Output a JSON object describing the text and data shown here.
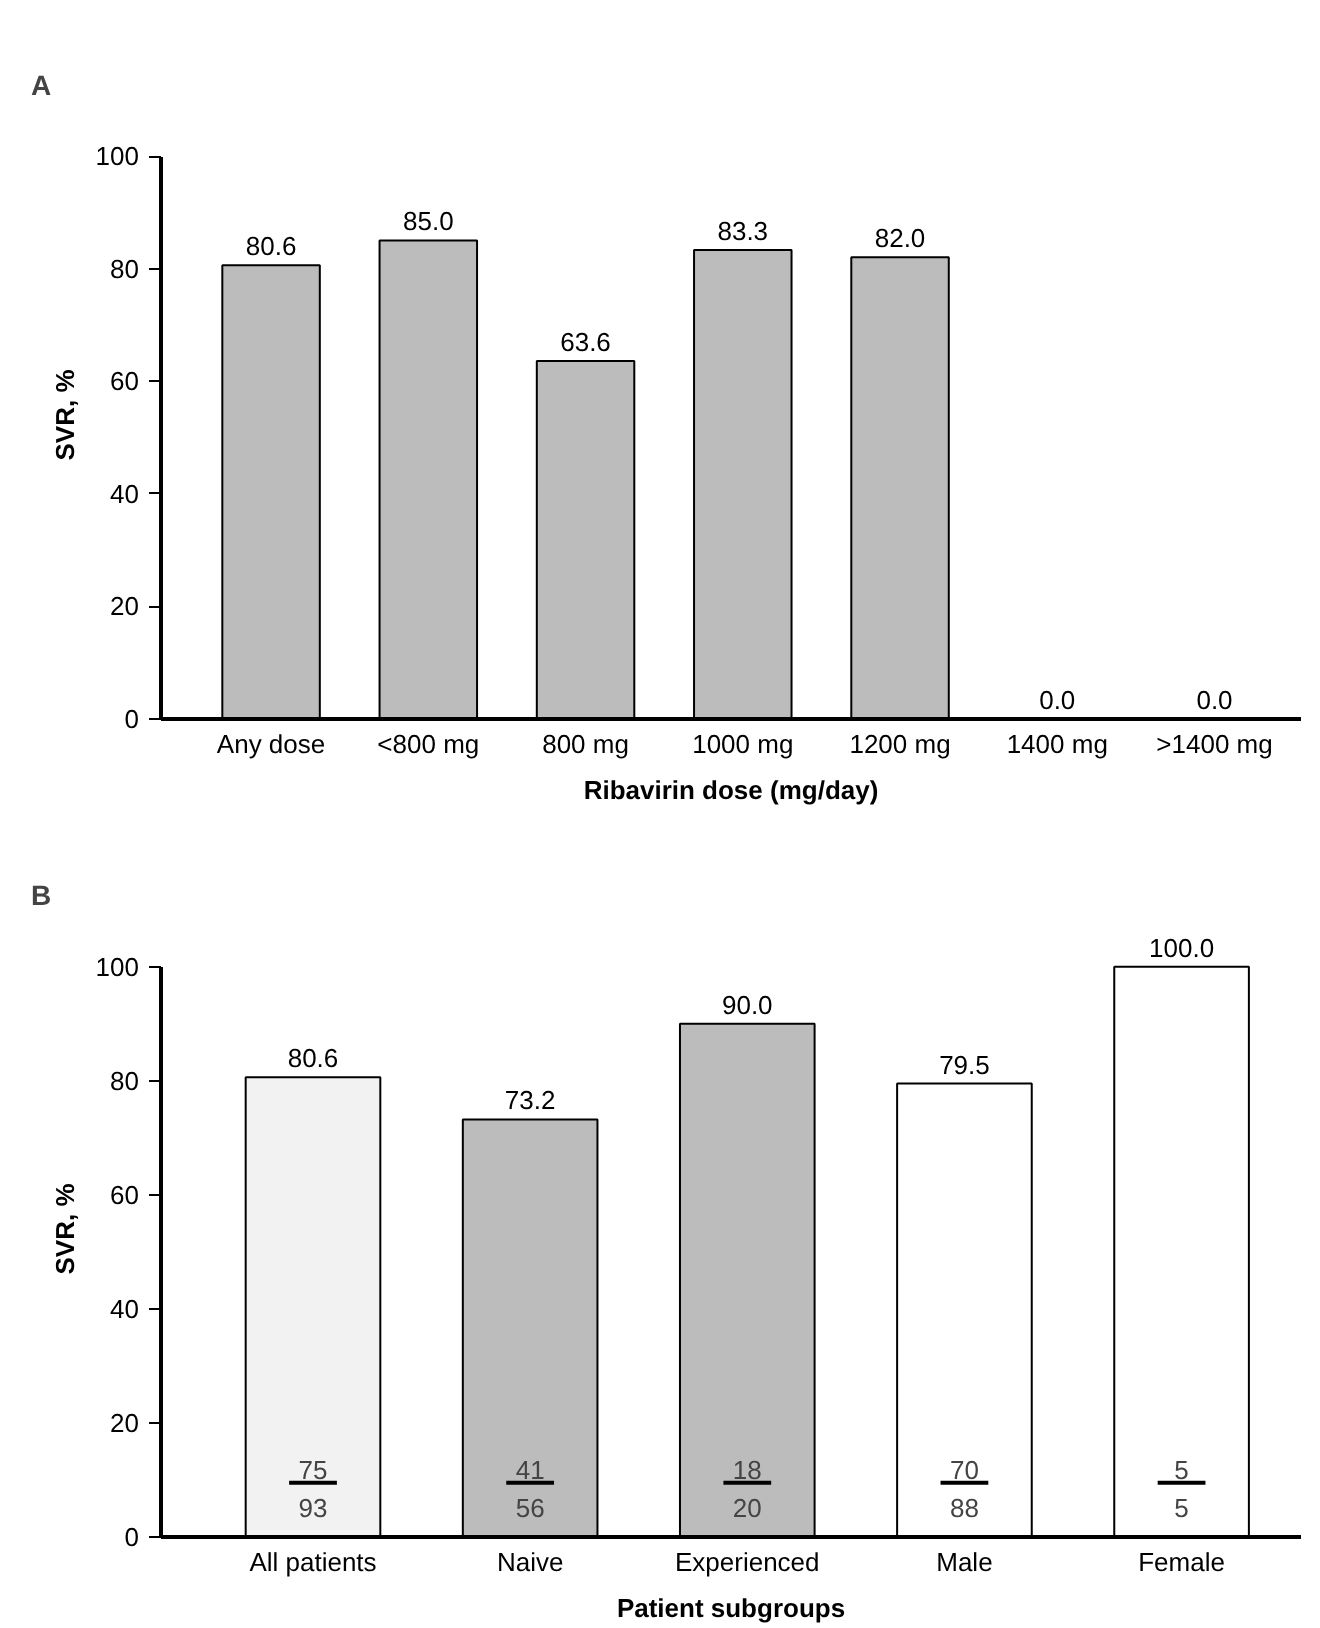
{
  "chart_data": [
    {
      "type": "bar",
      "title": "A",
      "xlabel": "Ribavirin dose (mg/day)",
      "ylabel": "SVR, %",
      "categories": [
        "Any dose",
        "<800 mg",
        "800 mg",
        "1000 mg",
        "1200 mg",
        "1400 mg",
        ">1400 mg"
      ],
      "values": [
        80.6,
        85.0,
        63.6,
        83.3,
        82.0,
        0.0,
        0.0
      ],
      "colors": [
        "#bcbcbc",
        "#bcbcbc",
        "#bcbcbc",
        "#bcbcbc",
        "#bcbcbc",
        "#bcbcbc",
        "#bcbcbc"
      ],
      "value_labels": [
        "80.6",
        "85.0",
        "63.6",
        "83.3",
        "82.0",
        "0.0",
        "0.0"
      ],
      "ylim": [
        0,
        100
      ],
      "yticks": [
        0,
        20,
        40,
        60,
        80,
        100
      ],
      "grid": false
    },
    {
      "type": "bar",
      "title": "B",
      "xlabel": "Patient subgroups",
      "ylabel": "SVR, %",
      "categories": [
        "All patients",
        "Naive",
        "Experienced",
        "Male",
        "Female"
      ],
      "values": [
        80.6,
        73.2,
        90.0,
        79.5,
        100.0
      ],
      "colors": [
        "#f2f2f2",
        "#bcbcbc",
        "#bcbcbc",
        "#ffffff",
        "#ffffff"
      ],
      "value_labels": [
        "80.6",
        "73.2",
        "90.0",
        "79.5",
        "100.0"
      ],
      "annotations": [
        "75",
        "93",
        "41",
        "56",
        "18",
        "20",
        "70",
        "88",
        "5",
        "5"
      ],
      "ylim": [
        0,
        100
      ],
      "yticks": [
        0,
        20,
        40,
        60,
        80,
        100
      ],
      "grid": false
    }
  ]
}
